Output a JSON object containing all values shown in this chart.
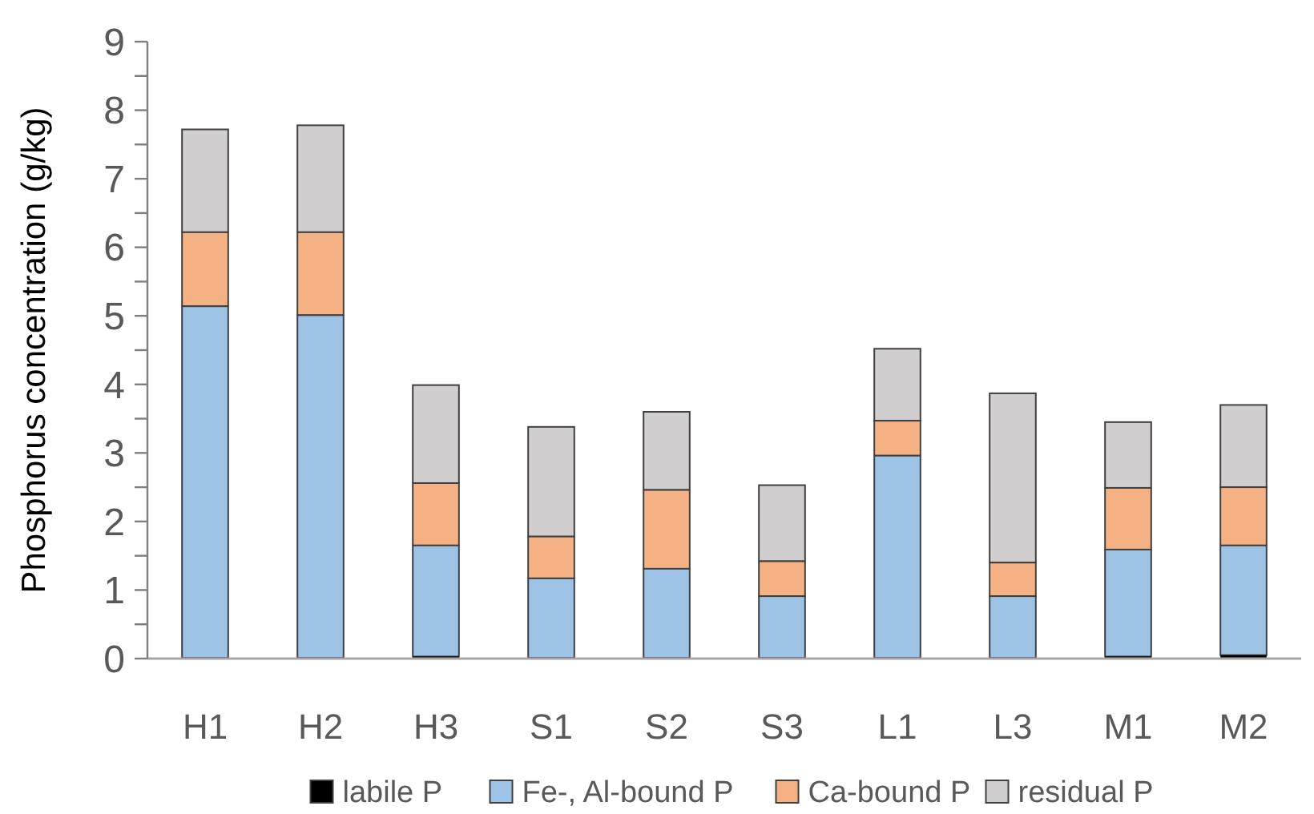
{
  "chart_data": {
    "type": "bar",
    "stacked": true,
    "ylabel": "Phosphorus concentration (g/kg)",
    "categories": [
      "H1",
      "H2",
      "H3",
      "S1",
      "S2",
      "S3",
      "L1",
      "L3",
      "M1",
      "M2"
    ],
    "series": [
      {
        "name": "labile P",
        "color": "#000000",
        "values": [
          0.01,
          0.01,
          0.03,
          0.01,
          0.01,
          0.01,
          0.01,
          0.01,
          0.03,
          0.05
        ]
      },
      {
        "name": "Fe-, Al-bound P",
        "color": "#9dc3e6",
        "values": [
          5.13,
          5.0,
          1.62,
          1.16,
          1.3,
          0.9,
          2.95,
          0.9,
          1.56,
          1.6
        ]
      },
      {
        "name": "Ca-bound P",
        "color": "#f4b183",
        "values": [
          1.08,
          1.21,
          0.91,
          0.61,
          1.15,
          0.51,
          0.51,
          0.49,
          0.9,
          0.85
        ]
      },
      {
        "name": "residual P",
        "color": "#d0cece",
        "values": [
          1.5,
          1.56,
          1.43,
          1.6,
          1.14,
          1.11,
          1.05,
          2.47,
          0.96,
          1.2
        ]
      }
    ],
    "ylim": [
      0,
      9
    ],
    "yticks": [
      0,
      {
        "value": 0.5,
        "label": null
      },
      1,
      {
        "value": 1.5,
        "label": null
      },
      2,
      {
        "value": 2.5,
        "label": null
      },
      3,
      {
        "value": 3.5,
        "label": null
      },
      4,
      {
        "value": 4.5,
        "label": null
      },
      5,
      {
        "value": 5.5,
        "label": null
      },
      6,
      {
        "value": 6.5,
        "label": null
      },
      7,
      {
        "value": 7.5,
        "label": null
      },
      8,
      {
        "value": 8.5,
        "label": null
      },
      9
    ],
    "grid": false,
    "legend": "bottom"
  }
}
